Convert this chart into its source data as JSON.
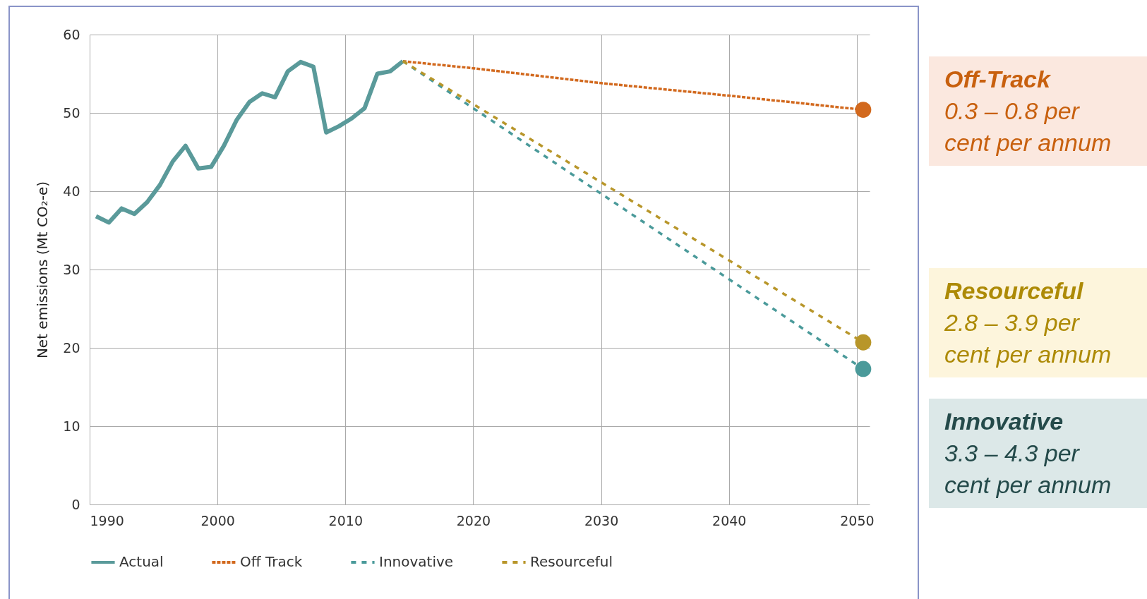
{
  "chart_data": {
    "type": "line",
    "ylabel": "Net emissions (Mt CO₂-e)",
    "xlim": [
      1990,
      2051
    ],
    "xticks": [
      1990,
      2000,
      2010,
      2020,
      2030,
      2040,
      2050
    ],
    "ylim": [
      0,
      60
    ],
    "yticks": [
      0,
      10,
      20,
      30,
      40,
      50,
      60
    ],
    "grid": true,
    "legend": "bottom",
    "series": [
      {
        "name": "Actual",
        "color": "#5a9a9a",
        "line_style": "solid",
        "x": [
          1990.5,
          1991.5,
          1992.5,
          1993.5,
          1994.5,
          1995.5,
          1996.5,
          1997.5,
          1998.5,
          1999.5,
          2000.5,
          2001.5,
          2002.5,
          2003.5,
          2004.5,
          2005.5,
          2006.5,
          2007.5,
          2008.5,
          2009.5,
          2010.5,
          2011.5,
          2012.5,
          2013.5,
          2014.5
        ],
        "values": [
          36.8,
          36.0,
          37.8,
          37.1,
          38.6,
          40.8,
          43.8,
          45.8,
          42.9,
          43.1,
          45.8,
          49.1,
          51.4,
          52.5,
          52.0,
          55.3,
          56.5,
          55.9,
          47.5,
          48.3,
          49.3,
          50.6,
          55.0,
          55.3,
          56.6
        ]
      },
      {
        "name": "Off Track",
        "color": "#d2691e",
        "line_style": "dotted",
        "x": [
          2014.5,
          2020,
          2030,
          2040,
          2050.5
        ],
        "values": [
          56.6,
          55.7,
          53.8,
          52.2,
          50.4
        ]
      },
      {
        "name": "Innovative",
        "color": "#4a9a9a",
        "line_style": "dashed",
        "x": [
          2014.5,
          2050.5
        ],
        "values": [
          56.6,
          17.3
        ]
      },
      {
        "name": "Resourceful",
        "color": "#b8962a",
        "line_style": "dashed",
        "x": [
          2014.5,
          2050.5
        ],
        "values": [
          56.6,
          20.7
        ]
      },
      {
        "type": "scatter",
        "marker": "circle",
        "color": "#d2691e",
        "x": [
          2050.5
        ],
        "values": [
          50.4
        ]
      },
      {
        "type": "scatter",
        "marker": "circle",
        "color": "#b8962a",
        "x": [
          2050.5
        ],
        "values": [
          20.7
        ]
      },
      {
        "type": "scatter",
        "marker": "circle",
        "color": "#4a9a9a",
        "x": [
          2050.5
        ],
        "values": [
          17.3
        ]
      }
    ],
    "annotations": [
      "Off-Track\n0.3 – 0.8 per cent per annum",
      "Resourceful\n2.8 – 3.9 per cent per annum",
      "Innovative\n3.3 – 4.3 per cent per annum"
    ]
  }
}
